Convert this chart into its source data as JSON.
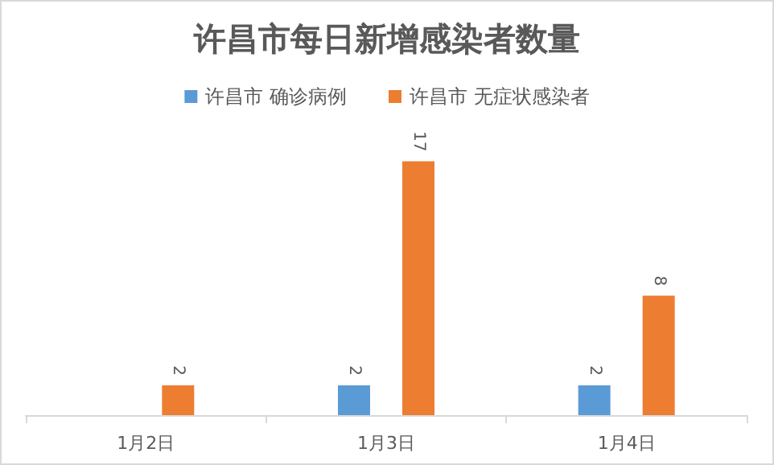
{
  "chart_data": {
    "type": "bar",
    "title": "许昌市每日新增感染者数量",
    "categories": [
      "1月2日",
      "1月3日",
      "1月4日"
    ],
    "series": [
      {
        "name": "许昌市 确诊病例",
        "color": "#5b9bd5",
        "values": [
          null,
          2,
          2
        ]
      },
      {
        "name": "许昌市 无症状感染者",
        "color": "#ed7d31",
        "values": [
          2,
          17,
          8
        ]
      }
    ],
    "data_labels": true,
    "legend": "top",
    "grid": false
  }
}
